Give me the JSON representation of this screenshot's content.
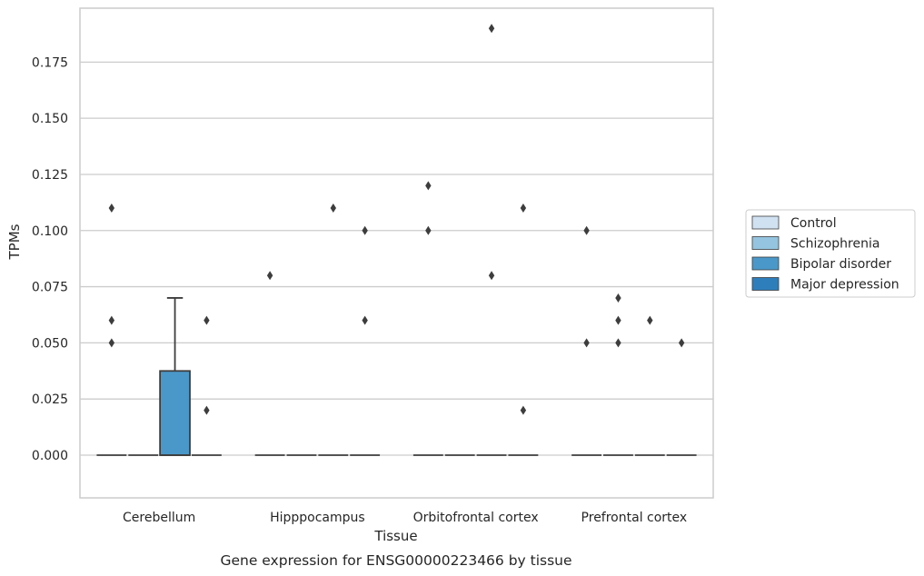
{
  "chart_data": {
    "type": "box",
    "caption": "Gene expression for ENSG00000223466 by tissue",
    "xlabel": "Tissue",
    "ylabel": "TPMs",
    "categories": [
      "Cerebellum",
      "Hipppocampus",
      "Orbitofrontal cortex",
      "Prefrontal cortex"
    ],
    "ylim": [
      -0.019,
      0.199
    ],
    "yticks": [
      0.0,
      0.025,
      0.05,
      0.075,
      0.1,
      0.125,
      0.15,
      0.175
    ],
    "ytick_labels": [
      "0.000",
      "0.025",
      "0.050",
      "0.075",
      "0.100",
      "0.125",
      "0.150",
      "0.175"
    ],
    "grid": true,
    "legend_position": "right",
    "series": [
      {
        "name": "Control",
        "color": "#d0e1f2",
        "boxes": [
          {
            "category": "Cerebellum",
            "q1": 0,
            "median": 0,
            "q3": 0,
            "whisker_low": 0,
            "whisker_high": 0,
            "outliers": [
              0.11,
              0.06,
              0.05
            ]
          },
          {
            "category": "Hipppocampus",
            "q1": 0,
            "median": 0,
            "q3": 0,
            "whisker_low": 0,
            "whisker_high": 0,
            "outliers": [
              0.08
            ]
          },
          {
            "category": "Orbitofrontal cortex",
            "q1": 0,
            "median": 0,
            "q3": 0,
            "whisker_low": 0,
            "whisker_high": 0,
            "outliers": [
              0.12,
              0.1
            ]
          },
          {
            "category": "Prefrontal cortex",
            "q1": 0,
            "median": 0,
            "q3": 0,
            "whisker_low": 0,
            "whisker_high": 0,
            "outliers": [
              0.1,
              0.05
            ]
          }
        ]
      },
      {
        "name": "Schizophrenia",
        "color": "#94c4df",
        "boxes": [
          {
            "category": "Cerebellum",
            "q1": 0,
            "median": 0,
            "q3": 0,
            "whisker_low": 0,
            "whisker_high": 0,
            "outliers": []
          },
          {
            "category": "Hipppocampus",
            "q1": 0,
            "median": 0,
            "q3": 0,
            "whisker_low": 0,
            "whisker_high": 0,
            "outliers": []
          },
          {
            "category": "Orbitofrontal cortex",
            "q1": 0,
            "median": 0,
            "q3": 0,
            "whisker_low": 0,
            "whisker_high": 0,
            "outliers": []
          },
          {
            "category": "Prefrontal cortex",
            "q1": 0,
            "median": 0,
            "q3": 0,
            "whisker_low": 0,
            "whisker_high": 0,
            "outliers": [
              0.07,
              0.06,
              0.05
            ]
          }
        ]
      },
      {
        "name": "Bipolar disorder",
        "color": "#4a98c9",
        "boxes": [
          {
            "category": "Cerebellum",
            "q1": 0,
            "median": 0,
            "q3": 0.0375,
            "whisker_low": 0,
            "whisker_high": 0.07,
            "outliers": []
          },
          {
            "category": "Hipppocampus",
            "q1": 0,
            "median": 0,
            "q3": 0,
            "whisker_low": 0,
            "whisker_high": 0,
            "outliers": [
              0.11
            ]
          },
          {
            "category": "Orbitofrontal cortex",
            "q1": 0,
            "median": 0,
            "q3": 0,
            "whisker_low": 0,
            "whisker_high": 0,
            "outliers": [
              0.19,
              0.08
            ]
          },
          {
            "category": "Prefrontal cortex",
            "q1": 0,
            "median": 0,
            "q3": 0,
            "whisker_low": 0,
            "whisker_high": 0,
            "outliers": [
              0.06
            ]
          }
        ]
      },
      {
        "name": "Major depression",
        "color": "#2e7ebc",
        "boxes": [
          {
            "category": "Cerebellum",
            "q1": 0,
            "median": 0,
            "q3": 0,
            "whisker_low": 0,
            "whisker_high": 0,
            "outliers": [
              0.06,
              0.02
            ]
          },
          {
            "category": "Hipppocampus",
            "q1": 0,
            "median": 0,
            "q3": 0,
            "whisker_low": 0,
            "whisker_high": 0,
            "outliers": [
              0.1,
              0.06
            ]
          },
          {
            "category": "Orbitofrontal cortex",
            "q1": 0,
            "median": 0,
            "q3": 0,
            "whisker_low": 0,
            "whisker_high": 0,
            "outliers": [
              0.11,
              0.02
            ]
          },
          {
            "category": "Prefrontal cortex",
            "q1": 0,
            "median": 0,
            "q3": 0,
            "whisker_low": 0,
            "whisker_high": 0,
            "outliers": [
              0.05
            ]
          }
        ]
      }
    ]
  }
}
